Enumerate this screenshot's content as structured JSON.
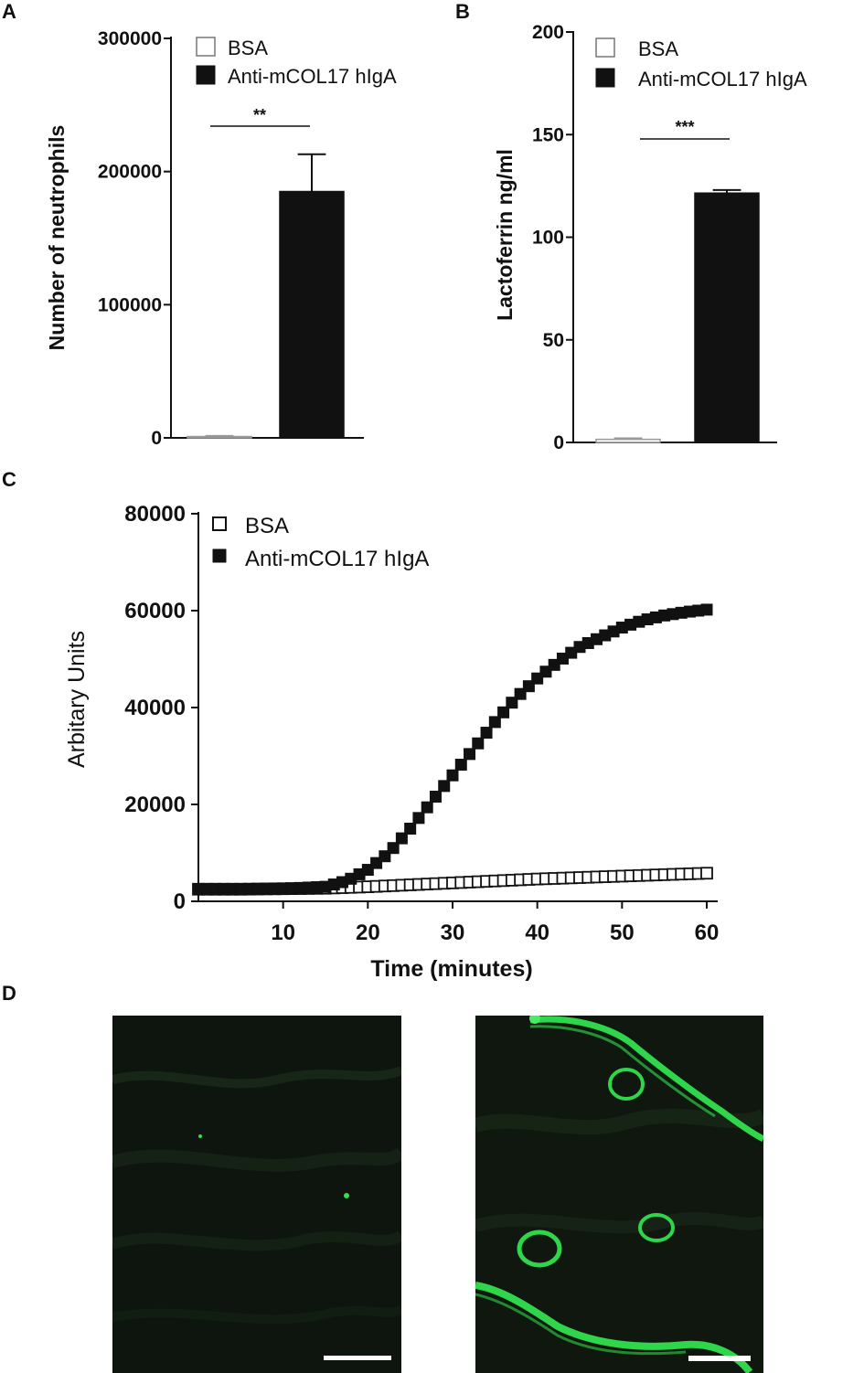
{
  "panel_labels": [
    "A",
    "B",
    "C",
    "D"
  ],
  "legend": {
    "control_label": "BSA",
    "treated_label": "Anti-mCOL17 hIgA"
  },
  "colors": {
    "control": "#ffffff",
    "treated": "#111111",
    "fluor_green": "#2fd64a"
  },
  "chart_data": [
    {
      "panel": "A",
      "type": "bar",
      "categories": [
        "BSA",
        "Anti-mCOL17 hIgA"
      ],
      "values": [
        1000,
        185000
      ],
      "errors": [
        500,
        28000
      ],
      "ylabel": "Number of neutrophils",
      "ylim": [
        0,
        300000
      ],
      "yticks": [
        0,
        100000,
        200000,
        300000
      ],
      "ytick_labels": [
        "0",
        "100000",
        "200000",
        "300000"
      ],
      "significance": "**",
      "legend_position": "top-right"
    },
    {
      "panel": "B",
      "type": "bar",
      "categories": [
        "BSA",
        "Anti-mCOL17 hIgA"
      ],
      "values": [
        1.5,
        121.5
      ],
      "errors": [
        0.5,
        1.5
      ],
      "ylabel": "Lactoferrin ng/ml",
      "ylim": [
        0,
        200
      ],
      "yticks": [
        0,
        50,
        100,
        150,
        200
      ],
      "ytick_labels": [
        "0",
        "50",
        "100",
        "150",
        "200"
      ],
      "significance": "***",
      "legend_position": "top-right"
    },
    {
      "panel": "C",
      "type": "scatter",
      "xlabel": "Time (minutes)",
      "ylabel": "Arbitary  Units",
      "xlim": [
        0,
        60
      ],
      "ylim": [
        0,
        80000
      ],
      "xticks": [
        10,
        20,
        30,
        40,
        50,
        60
      ],
      "xtick_labels": [
        "10",
        "20",
        "30",
        "40",
        "50",
        "60"
      ],
      "yticks": [
        0,
        20000,
        40000,
        60000,
        80000
      ],
      "ytick_labels": [
        "0",
        "20000",
        "40000",
        "60000",
        "80000"
      ],
      "legend_position": "top-left",
      "series": [
        {
          "name": "BSA",
          "marker": "open-square",
          "x": [
            0,
            5,
            10,
            15,
            20,
            25,
            30,
            35,
            40,
            45,
            50,
            55,
            60
          ],
          "y": [
            2500,
            2500,
            2600,
            2700,
            3000,
            3400,
            3800,
            4200,
            4600,
            4900,
            5200,
            5500,
            5800
          ]
        },
        {
          "name": "Anti-mCOL17 hIgA",
          "marker": "filled-square",
          "x": [
            0,
            5,
            10,
            15,
            17.5,
            20,
            22.5,
            25,
            27.5,
            30,
            32.5,
            35,
            37.5,
            40,
            42.5,
            45,
            47.5,
            50,
            52.5,
            55,
            57.5,
            60
          ],
          "y": [
            2500,
            2500,
            2600,
            3000,
            4200,
            6500,
            10000,
            15000,
            20500,
            26000,
            31500,
            37000,
            42000,
            46000,
            49500,
            52500,
            54500,
            56500,
            58000,
            59000,
            59700,
            60200
          ]
        }
      ]
    }
  ]
}
